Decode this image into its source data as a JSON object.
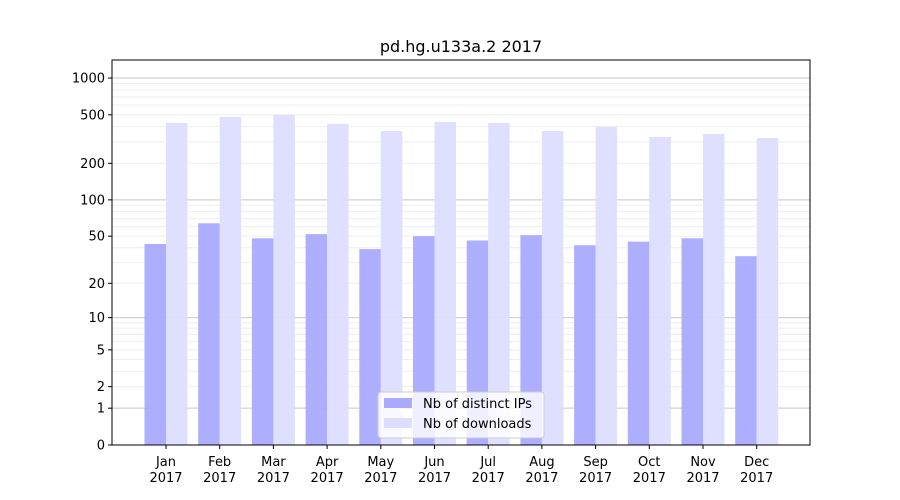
{
  "chart_data": {
    "type": "bar",
    "title": "pd.hg.u133a.2 2017",
    "xlabel": "",
    "ylabel": "",
    "yscale": "symlog",
    "ylim": [
      0,
      1300
    ],
    "yticks": [
      0,
      1,
      2,
      5,
      10,
      20,
      50,
      100,
      200,
      500,
      1000
    ],
    "ytick_labels": [
      "0",
      "1",
      "2",
      "5",
      "10",
      "20",
      "50",
      "100",
      "200",
      "500",
      "1000"
    ],
    "grid": true,
    "legend_position": "lower-center",
    "categories": [
      "Jan\n2017",
      "Feb\n2017",
      "Mar\n2017",
      "Apr\n2017",
      "May\n2017",
      "Jun\n2017",
      "Jul\n2017",
      "Aug\n2017",
      "Sep\n2017",
      "Oct\n2017",
      "Nov\n2017",
      "Dec\n2017"
    ],
    "series": [
      {
        "name": "Nb of distinct IPs",
        "color": "#aaaaff",
        "values": [
          43,
          64,
          48,
          52,
          39,
          50,
          46,
          51,
          42,
          45,
          48,
          34
        ]
      },
      {
        "name": "Nb of downloads",
        "color": "#ddddff",
        "values": [
          429,
          481,
          499,
          421,
          368,
          437,
          429,
          368,
          398,
          329,
          348,
          323
        ]
      }
    ]
  }
}
